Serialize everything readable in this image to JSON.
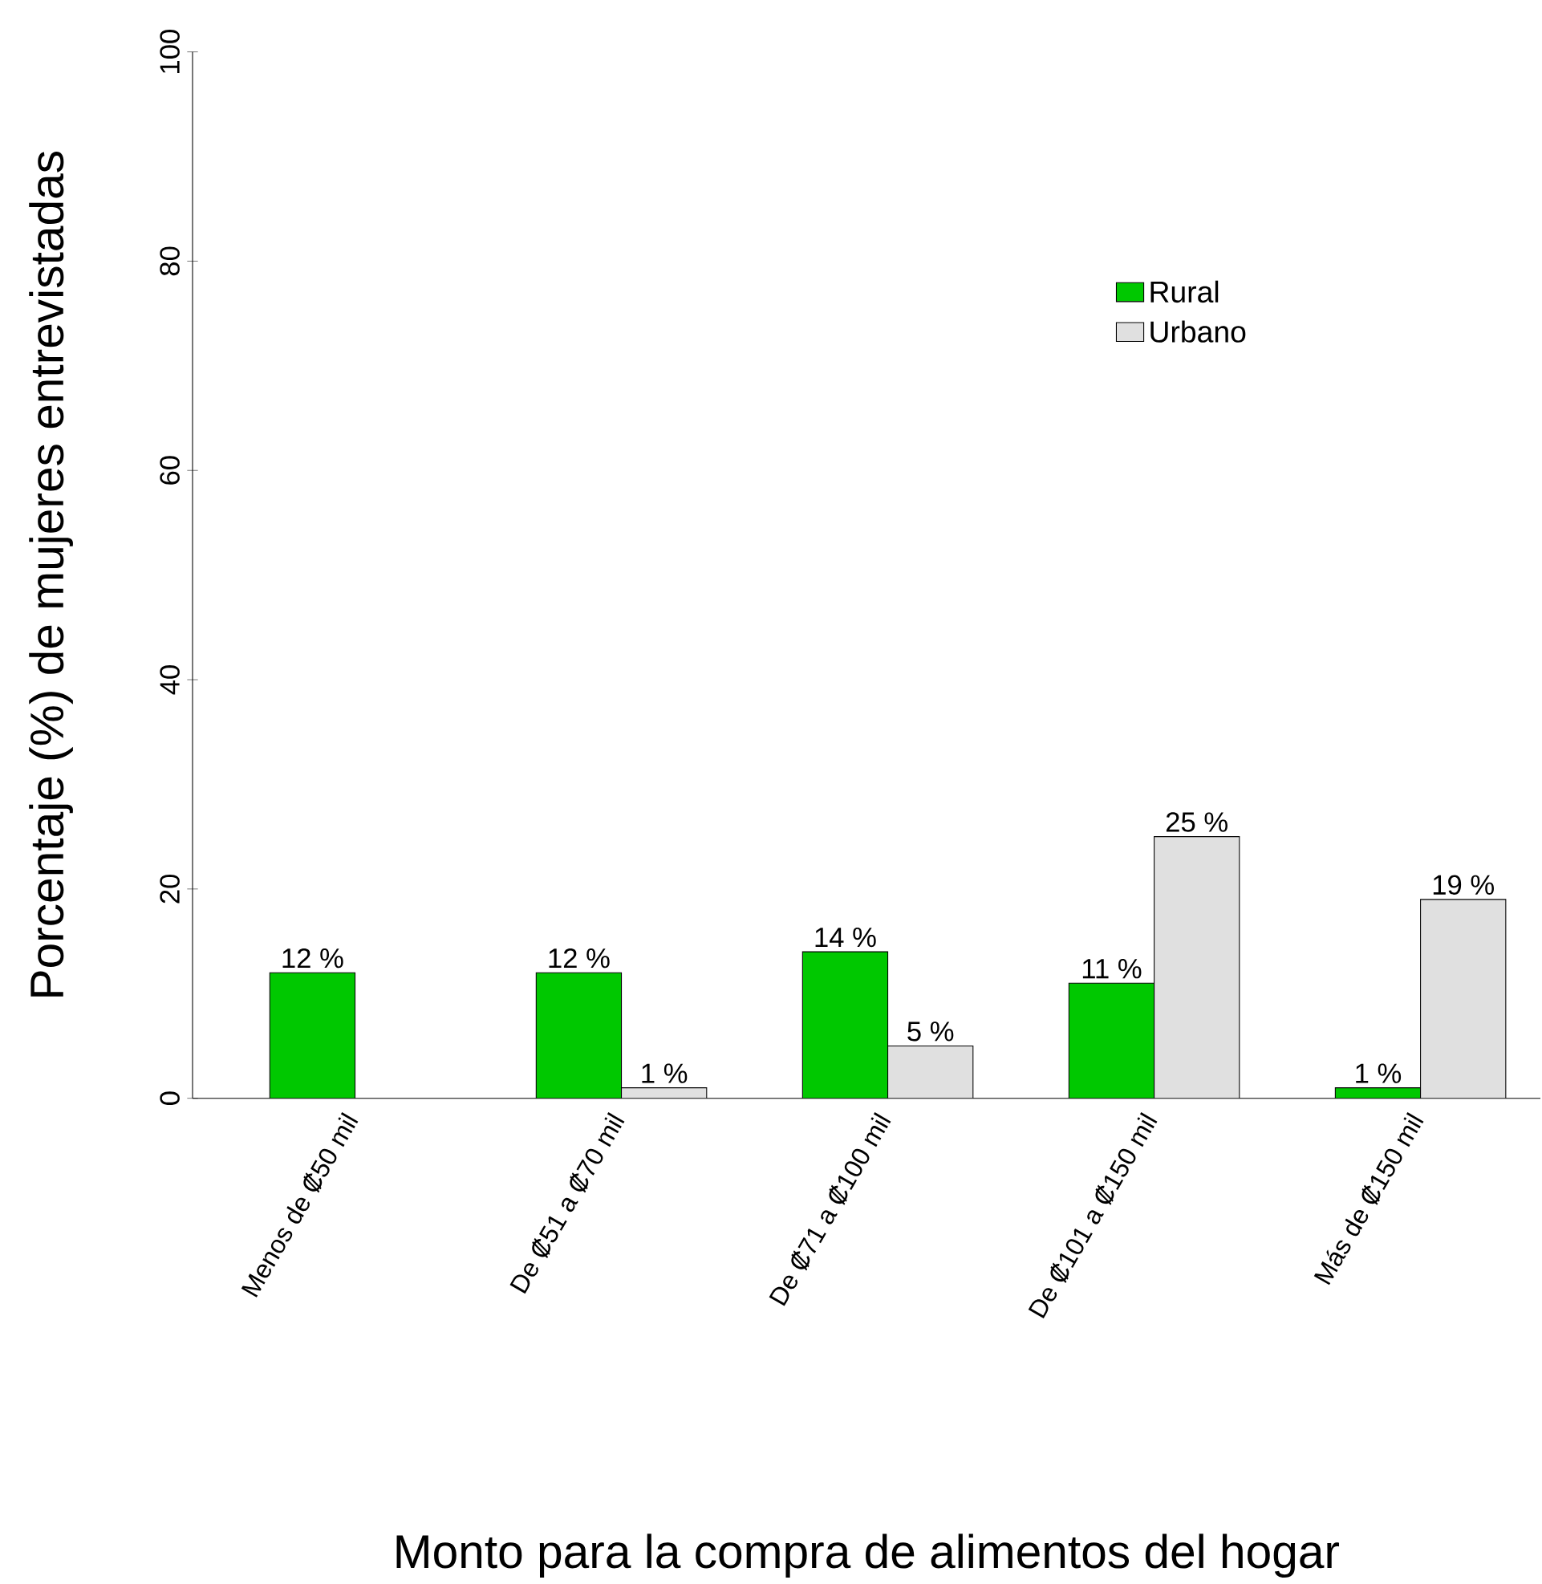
{
  "chart_data": {
    "type": "bar",
    "xlabel": "Monto para la compra de alimentos del hogar",
    "ylabel": "Porcentaje (%) de mujeres entrevistadas",
    "categories": [
      "Menos de ₡50 mil",
      "De ₡51 a ₡70 mil",
      "De ₡71 a ₡100 mil",
      "De ₡101 a ₡150 mil",
      "Más de ₡150 mil"
    ],
    "series": [
      {
        "name": "Rural",
        "color": "#00c800",
        "values": [
          12,
          12,
          14,
          11,
          1
        ],
        "value_labels": [
          "12 %",
          "12 %",
          "14 %",
          "11 %",
          "1 %"
        ]
      },
      {
        "name": "Urbano",
        "color": "#e0e0e0",
        "values": [
          null,
          1,
          5,
          25,
          19
        ],
        "value_labels": [
          null,
          "1 %",
          "5 %",
          "25 %",
          "19 %"
        ]
      }
    ],
    "ylim": [
      0,
      100
    ],
    "yticks": [
      0,
      20,
      40,
      60,
      80,
      100
    ],
    "legend": "top right",
    "grid": false
  }
}
